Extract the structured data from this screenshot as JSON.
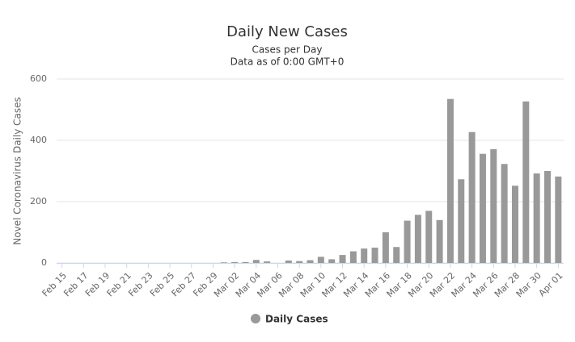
{
  "chart_data": {
    "type": "bar",
    "title": "Daily New Cases",
    "subtitle": [
      "Cases per Day",
      "Data as of 0:00 GMT+0"
    ],
    "y_label": "Novel Coronavirus Daily Cases",
    "categories": [
      "Feb 15",
      null,
      "Feb 17",
      null,
      "Feb 19",
      null,
      "Feb 21",
      null,
      "Feb 23",
      null,
      "Feb 25",
      null,
      "Feb 27",
      null,
      "Feb 29",
      null,
      "Mar 02",
      null,
      "Mar 04",
      null,
      "Mar 06",
      null,
      "Mar 08",
      null,
      "Mar 10",
      null,
      "Mar 12",
      null,
      "Mar 14",
      null,
      "Mar 16",
      null,
      "Mar 18",
      null,
      "Mar 20",
      null,
      "Mar 22",
      null,
      "Mar 24",
      null,
      "Mar 26",
      null,
      "Mar 28",
      null,
      "Mar 30",
      null,
      "Apr 01"
    ],
    "series": [
      {
        "name": "Daily Cases",
        "color": "#999999",
        "values": [
          0,
          0,
          0,
          0,
          0,
          0,
          0,
          0,
          0,
          0,
          0,
          0,
          0,
          0,
          0,
          2,
          3,
          3,
          10,
          5,
          0,
          8,
          6,
          9,
          20,
          12,
          26,
          38,
          47,
          50,
          100,
          52,
          138,
          157,
          170,
          140,
          535,
          273,
          427,
          356,
          371,
          323,
          252,
          527,
          292,
          300,
          282
        ]
      }
    ],
    "ylim": [
      0,
      600
    ],
    "yticks": [
      0,
      200,
      400,
      600
    ],
    "grid": true,
    "legend": "bottom"
  }
}
